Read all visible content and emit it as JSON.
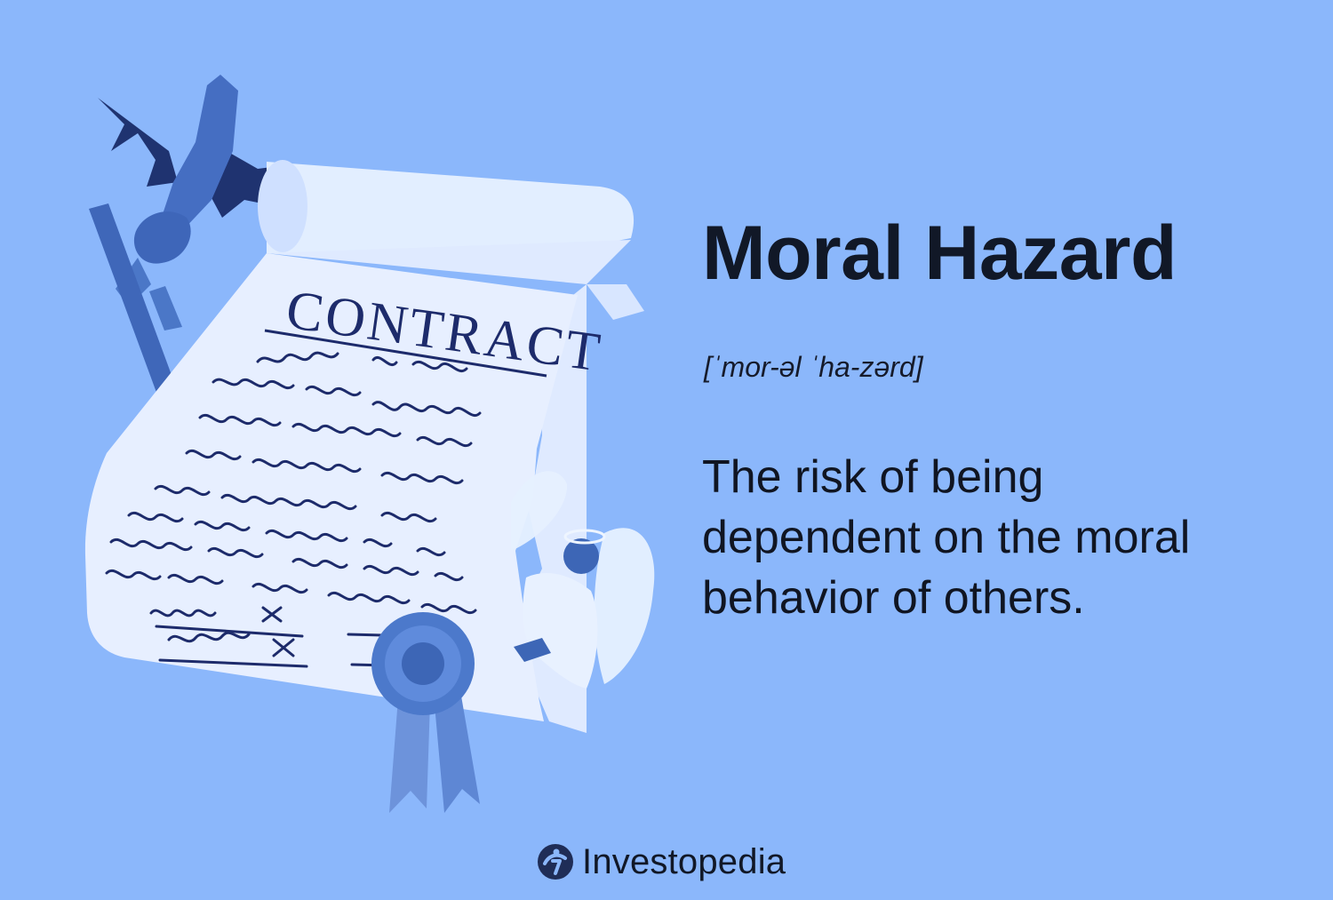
{
  "contract": {
    "title": "CONTRACT"
  },
  "definition": {
    "term": "Moral Hazard",
    "pronunciation": "[ˈmor-əl ˈha-zərd]",
    "lines": [
      "The risk of being",
      "dependent on the moral",
      "behavior of others."
    ]
  },
  "brand": {
    "name": "Investopedia",
    "icon": "investopedia-logo-icon"
  },
  "colors": {
    "background": "#8bb7fb",
    "paper": "#e7efff",
    "ink": "#1d2b6b",
    "illustration_blue": "#4a78c8",
    "dark_blue": "#223a75"
  }
}
